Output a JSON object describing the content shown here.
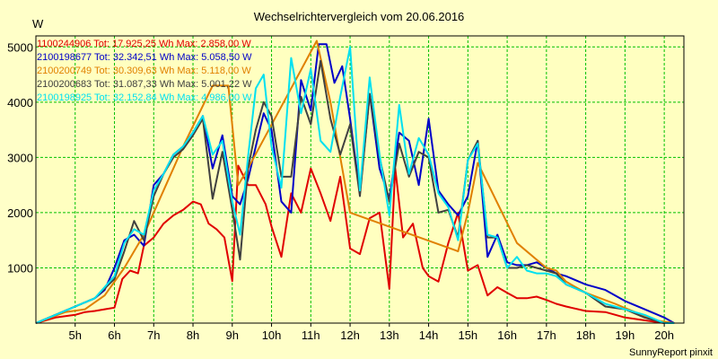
{
  "chart_data": {
    "type": "line",
    "title": "Wechselrichtervergleich vom 20.06.2016",
    "ylabel": "W",
    "xlabel": "",
    "footer": "SunnyReport pinxit",
    "ylim": [
      0,
      5200
    ],
    "xlim": [
      4.0,
      20.5
    ],
    "grid": true,
    "y_ticks": [
      {
        "value": 1000,
        "label": "1000"
      },
      {
        "value": 2000,
        "label": "2000"
      },
      {
        "value": 3000,
        "label": "3000"
      },
      {
        "value": 4000,
        "label": "4000"
      },
      {
        "value": 5000,
        "label": "5000"
      }
    ],
    "x_ticks": [
      {
        "value": 5,
        "label": "5h"
      },
      {
        "value": 6,
        "label": "6h"
      },
      {
        "value": 7,
        "label": "7h"
      },
      {
        "value": 8,
        "label": "8h"
      },
      {
        "value": 9,
        "label": "9h"
      },
      {
        "value": 10,
        "label": "10h"
      },
      {
        "value": 11,
        "label": "11h"
      },
      {
        "value": 12,
        "label": "12h"
      },
      {
        "value": 13,
        "label": "13h"
      },
      {
        "value": 14,
        "label": "14h"
      },
      {
        "value": 15,
        "label": "15h"
      },
      {
        "value": 16,
        "label": "16h"
      },
      {
        "value": 17,
        "label": "17h"
      },
      {
        "value": 18,
        "label": "18h"
      },
      {
        "value": 19,
        "label": "19h"
      },
      {
        "value": 20,
        "label": "20h"
      }
    ],
    "series": [
      {
        "name": "1100244906 Tot: 17.925,25 Wh Max: 2.858,00 W",
        "color": "#e00000",
        "x": [
          4.0,
          4.5,
          5.0,
          5.25,
          5.5,
          5.75,
          6.0,
          6.2,
          6.4,
          6.6,
          6.75,
          7.0,
          7.25,
          7.5,
          7.75,
          8.0,
          8.2,
          8.4,
          8.6,
          8.8,
          9.0,
          9.15,
          9.4,
          9.6,
          9.85,
          10.0,
          10.25,
          10.5,
          10.75,
          11.0,
          11.25,
          11.5,
          11.75,
          12.0,
          12.25,
          12.5,
          12.75,
          13.0,
          13.15,
          13.35,
          13.6,
          13.85,
          14.0,
          14.25,
          14.5,
          14.75,
          15.0,
          15.25,
          15.5,
          15.75,
          16.0,
          16.25,
          16.5,
          16.75,
          17.0,
          17.25,
          17.5,
          18.0,
          18.5,
          19.0,
          19.5,
          20.0,
          20.25
        ],
        "values": [
          0,
          100,
          150,
          200,
          220,
          250,
          280,
          800,
          950,
          900,
          1400,
          1550,
          1800,
          1950,
          2050,
          2200,
          2150,
          1800,
          1700,
          1550,
          760,
          2850,
          2500,
          2500,
          2150,
          1750,
          1200,
          2350,
          2000,
          2800,
          2350,
          1850,
          2650,
          1350,
          1250,
          1900,
          2000,
          620,
          2800,
          1550,
          1800,
          1000,
          850,
          750,
          1450,
          2000,
          950,
          1050,
          500,
          650,
          550,
          450,
          450,
          480,
          420,
          350,
          300,
          220,
          200,
          100,
          50,
          0,
          0
        ]
      },
      {
        "name": "2100198677 Tot: 32.342,51 Wh Max: 5.058,50 W",
        "color": "#0000c8",
        "x": [
          4.0,
          4.5,
          5.0,
          5.5,
          5.75,
          6.0,
          6.25,
          6.5,
          6.75,
          7.0,
          7.25,
          7.5,
          7.75,
          8.0,
          8.25,
          8.5,
          8.75,
          9.0,
          9.2,
          9.4,
          9.6,
          9.8,
          10.0,
          10.25,
          10.5,
          10.75,
          11.0,
          11.2,
          11.4,
          11.6,
          11.8,
          12.0,
          12.25,
          12.5,
          12.75,
          13.0,
          13.25,
          13.5,
          13.75,
          14.0,
          14.25,
          14.5,
          14.75,
          15.0,
          15.25,
          15.5,
          15.75,
          16.0,
          16.25,
          16.5,
          16.75,
          17.0,
          17.25,
          17.5,
          18.0,
          18.5,
          19.0,
          19.5,
          20.0,
          20.25
        ],
        "values": [
          0,
          150,
          300,
          450,
          600,
          1000,
          1500,
          1600,
          1400,
          2500,
          2700,
          3050,
          3200,
          3450,
          3750,
          2800,
          3400,
          2300,
          2150,
          2600,
          3200,
          3800,
          3500,
          2200,
          2000,
          4400,
          3850,
          5050,
          5050,
          4350,
          4650,
          3700,
          2350,
          4150,
          2800,
          2250,
          3450,
          3300,
          2500,
          3700,
          2400,
          2150,
          1950,
          2300,
          3300,
          1200,
          1600,
          1100,
          1050,
          1050,
          1100,
          1000,
          900,
          850,
          700,
          600,
          400,
          250,
          100,
          0
        ]
      },
      {
        "name": "2100200749 Tot: 30.309,63 Wh Max: 5.118,00 W",
        "color": "#e08000",
        "x": [
          4.0,
          4.75,
          5.25,
          5.75,
          6.25,
          6.75,
          7.25,
          7.75,
          8.5,
          8.9,
          9.15,
          9.4,
          11.15,
          11.5,
          12.0,
          14.75,
          15.0,
          15.25,
          16.25,
          17.0,
          17.25,
          17.5,
          18.0,
          18.75,
          19.25,
          19.75,
          20.25
        ],
        "values": [
          0,
          200,
          250,
          500,
          1000,
          1600,
          2400,
          3200,
          4300,
          4300,
          2500,
          2800,
          5110,
          4000,
          2000,
          1300,
          2000,
          2900,
          1450,
          1000,
          950,
          750,
          550,
          350,
          200,
          50,
          0
        ]
      },
      {
        "name": "2100200683 Tot: 31.087,33 Wh Max: 5.001,22 W",
        "color": "#404040",
        "x": [
          4.0,
          4.5,
          5.0,
          5.5,
          6.0,
          6.25,
          6.5,
          6.75,
          7.0,
          7.25,
          7.5,
          7.75,
          8.0,
          8.25,
          8.5,
          8.75,
          9.0,
          9.2,
          9.4,
          9.6,
          9.8,
          10.0,
          10.25,
          10.5,
          10.75,
          11.0,
          11.25,
          11.5,
          11.75,
          12.0,
          12.25,
          12.5,
          12.75,
          13.0,
          13.25,
          13.5,
          13.75,
          14.0,
          14.25,
          14.5,
          14.75,
          15.0,
          15.25,
          15.5,
          15.75,
          16.0,
          16.25,
          16.5,
          16.75,
          17.0,
          17.25,
          17.5,
          18.0,
          18.5,
          19.0,
          19.5,
          20.0,
          20.25
        ],
        "values": [
          0,
          150,
          300,
          450,
          800,
          1300,
          1850,
          1500,
          2300,
          2700,
          3000,
          3150,
          3400,
          3700,
          2250,
          3100,
          2050,
          1150,
          2800,
          3500,
          4000,
          3750,
          2650,
          2650,
          4100,
          3600,
          4750,
          3700,
          3050,
          3600,
          2300,
          4150,
          3000,
          2200,
          3250,
          2650,
          3100,
          3000,
          2000,
          2050,
          1550,
          2950,
          3300,
          1550,
          1550,
          1000,
          1000,
          1050,
          1000,
          950,
          900,
          700,
          550,
          300,
          250,
          100,
          0,
          0
        ]
      },
      {
        "name": "2100198925 Tot: 32.152,84 Wh Max: 4.986,00 W",
        "color": "#00e0f0",
        "x": [
          4.0,
          4.5,
          5.0,
          5.5,
          6.0,
          6.25,
          6.5,
          6.75,
          7.0,
          7.25,
          7.5,
          7.75,
          8.0,
          8.25,
          8.5,
          8.75,
          9.0,
          9.2,
          9.4,
          9.6,
          9.8,
          10.0,
          10.25,
          10.5,
          10.75,
          11.0,
          11.25,
          11.5,
          11.75,
          12.0,
          12.25,
          12.5,
          12.75,
          13.0,
          13.25,
          13.5,
          13.75,
          14.0,
          14.25,
          14.5,
          14.75,
          15.0,
          15.25,
          15.5,
          15.75,
          16.0,
          16.25,
          16.5,
          16.75,
          17.0,
          17.25,
          17.5,
          18.0,
          18.5,
          19.0,
          19.5,
          20.0,
          20.25
        ],
        "values": [
          0,
          150,
          300,
          450,
          850,
          1450,
          1700,
          1600,
          2400,
          2700,
          3050,
          3200,
          3450,
          3750,
          3050,
          3300,
          2200,
          1600,
          3000,
          4250,
          4500,
          3200,
          2450,
          4800,
          3800,
          4600,
          3300,
          3100,
          4100,
          5000,
          2400,
          4450,
          3050,
          1950,
          3950,
          2700,
          3350,
          3050,
          2350,
          2100,
          1500,
          2950,
          3250,
          1600,
          1550,
          1000,
          1200,
          950,
          900,
          900,
          850,
          700,
          550,
          350,
          250,
          150,
          0,
          0
        ]
      }
    ]
  }
}
